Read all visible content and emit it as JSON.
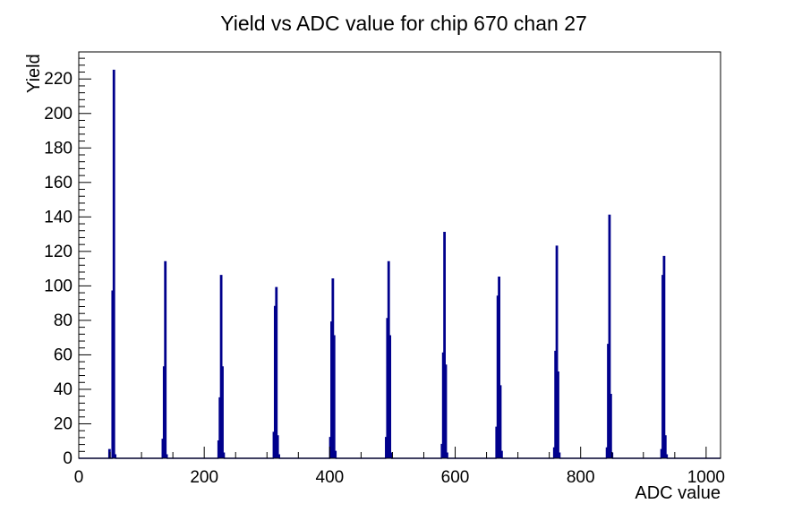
{
  "chart_data": {
    "type": "bar",
    "title": "Yield vs ADC value for chip 670 chan 27",
    "xlabel": "ADC value",
    "ylabel": "Yield",
    "xlim": [
      0,
      1023
    ],
    "ylim": [
      0,
      235.7
    ],
    "x_major_ticks": [
      0,
      200,
      400,
      600,
      800,
      1000
    ],
    "x_minor_step": 50,
    "y_major_ticks": [
      0,
      20,
      40,
      60,
      80,
      100,
      120,
      140,
      160,
      180,
      200,
      220
    ],
    "y_minor_step": 4,
    "grid": false,
    "legend": false,
    "line_color": "#00008c",
    "frame_color": "#000000",
    "background_color": "#ffffff",
    "peak_summary": {
      "centers_adc": [
        55,
        138,
        227,
        315,
        405,
        494,
        583,
        670,
        762,
        846,
        933
      ],
      "peak_heights": [
        225,
        114,
        106,
        99,
        104,
        114,
        131,
        105,
        123,
        141,
        117
      ]
    },
    "bins": [
      [
        48,
        50,
        5
      ],
      [
        53,
        55,
        97
      ],
      [
        55,
        57,
        225
      ],
      [
        57,
        59,
        2
      ],
      [
        133,
        135,
        11
      ],
      [
        135,
        137,
        53
      ],
      [
        137,
        139,
        114
      ],
      [
        139,
        141,
        2
      ],
      [
        222,
        224,
        10
      ],
      [
        224,
        226,
        35
      ],
      [
        226,
        228,
        106
      ],
      [
        228,
        230,
        53
      ],
      [
        230,
        232,
        3
      ],
      [
        310,
        312,
        15
      ],
      [
        312,
        314,
        88
      ],
      [
        314,
        316,
        99
      ],
      [
        316,
        318,
        13
      ],
      [
        318,
        320,
        2
      ],
      [
        400,
        402,
        12
      ],
      [
        402,
        404,
        79
      ],
      [
        404,
        406,
        104
      ],
      [
        406,
        408,
        71
      ],
      [
        408,
        410,
        4
      ],
      [
        489,
        491,
        12
      ],
      [
        491,
        493,
        81
      ],
      [
        493,
        495,
        114
      ],
      [
        495,
        497,
        71
      ],
      [
        497,
        499,
        3
      ],
      [
        578,
        580,
        8
      ],
      [
        580,
        582,
        61
      ],
      [
        582,
        584,
        131
      ],
      [
        584,
        586,
        54
      ],
      [
        586,
        588,
        3
      ],
      [
        665,
        667,
        18
      ],
      [
        667,
        669,
        94
      ],
      [
        669,
        671,
        105
      ],
      [
        671,
        673,
        42
      ],
      [
        673,
        675,
        4
      ],
      [
        757,
        759,
        6
      ],
      [
        759,
        761,
        62
      ],
      [
        761,
        763,
        123
      ],
      [
        763,
        765,
        50
      ],
      [
        765,
        767,
        3
      ],
      [
        841,
        843,
        6
      ],
      [
        843,
        845,
        66
      ],
      [
        845,
        847,
        141
      ],
      [
        847,
        849,
        37
      ],
      [
        849,
        851,
        3
      ],
      [
        928,
        930,
        5
      ],
      [
        930,
        932,
        106
      ],
      [
        932,
        934,
        117
      ],
      [
        934,
        936,
        13
      ],
      [
        936,
        938,
        2
      ]
    ]
  }
}
